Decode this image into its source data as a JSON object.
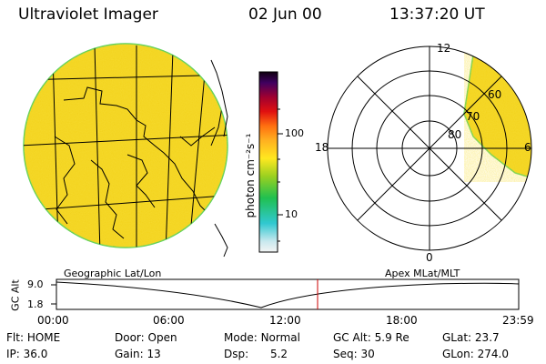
{
  "header": {
    "title": "Ultraviolet Imager",
    "date": "02 Jun 00",
    "time": "13:37:20 UT"
  },
  "colorbar": {
    "unit_label": "photon cm⁻²s⁻¹",
    "ticks": [
      "100",
      "10"
    ]
  },
  "polar_plot": {
    "mlt_labels": [
      "12",
      "18",
      "6",
      "0"
    ],
    "lat_labels": [
      "60",
      "70",
      "80"
    ]
  },
  "orbit_panel": {
    "left_label": "Geographic Lat/Lon",
    "right_label": "Apex MLat/MLT",
    "axis_label": "GC Alt",
    "y_ticks": [
      "9.0",
      "1.8"
    ],
    "x_ticks": [
      "00:00",
      "06:00",
      "12:00",
      "18:00",
      "23:59"
    ]
  },
  "status": {
    "row1": [
      {
        "label": "Flt:",
        "value": "HOME"
      },
      {
        "label": "Door:",
        "value": "Open"
      },
      {
        "label": "Mode:",
        "value": "Normal"
      },
      {
        "label": "GC Alt:",
        "value": "5.9 Re"
      },
      {
        "label": "GLat:",
        "value": "23.7"
      }
    ],
    "row2": [
      {
        "label": "IP:",
        "value": "36.0"
      },
      {
        "label": "Gain:",
        "value": "13"
      },
      {
        "label": "Dsp:",
        "value": "5.2"
      },
      {
        "label": "Seq:",
        "value": "30"
      },
      {
        "label": "GLon:",
        "value": "274.0"
      }
    ]
  },
  "colors": {
    "emission_fill": "#f2d21a",
    "marker_red": "#cc0000"
  }
}
